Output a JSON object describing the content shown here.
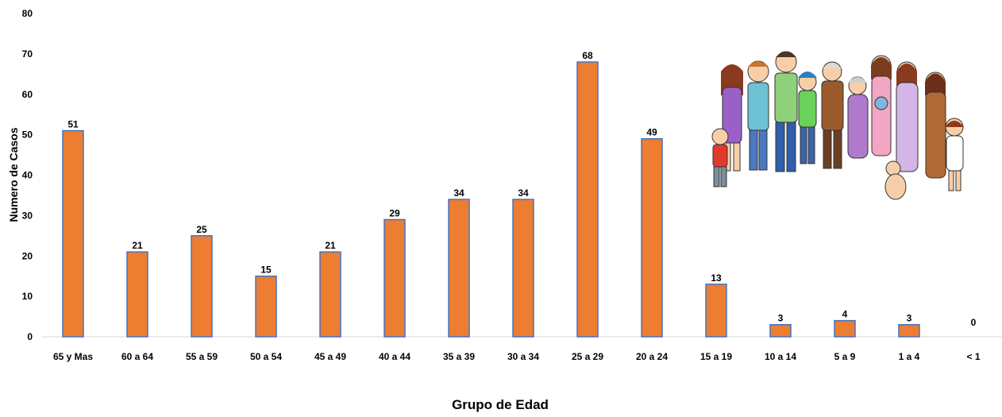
{
  "chart_data": {
    "type": "bar",
    "categories": [
      "65 y Mas",
      "60 a 64",
      "55 a 59",
      "50 a 54",
      "45 a 49",
      "40 a 44",
      "35 a 39",
      "30 a 34",
      "25 a 29",
      "20 a 24",
      "15 a 19",
      "10 a 14",
      "5 a 9",
      "1 a 4",
      "< 1"
    ],
    "values": [
      51,
      21,
      25,
      15,
      21,
      29,
      34,
      34,
      68,
      49,
      13,
      3,
      4,
      3,
      0
    ],
    "xlabel": "Grupo de Edad",
    "ylabel": "Numero de Casos",
    "ylim": [
      0,
      80
    ],
    "yticks": [
      0,
      10,
      20,
      30,
      40,
      50,
      60,
      70,
      80
    ],
    "grid": false,
    "legend": "none",
    "bar_color": "#ED7D31",
    "bar_edge_color": "#4472C4"
  },
  "illustration": {
    "name": "family-group-illustration"
  }
}
